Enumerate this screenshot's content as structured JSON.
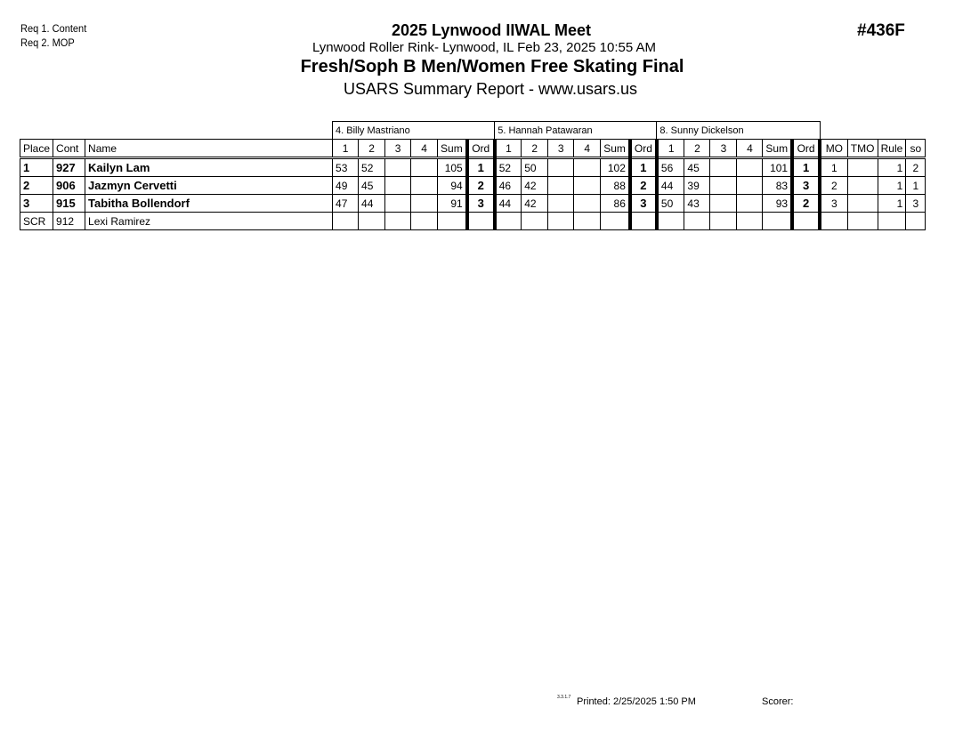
{
  "header": {
    "requirements": [
      "Req  1.  Content",
      "Req  2.  MOP"
    ],
    "meet_title": "2025 Lynwood IIWAL Meet",
    "location_line": "Lynwood Roller Rink- Lynwood, IL  Feb 23, 2025  10:55 AM",
    "event_title": "Fresh/Soph B Men/Women Free Skating Final",
    "report_title": "USARS Summary Report - www.usars.us",
    "event_number": "#436F"
  },
  "judges": [
    "4.  Billy Mastriano",
    "5.  Hannah  Patawaran",
    "8.  Sunny  Dickelson"
  ],
  "columns": {
    "place": "Place",
    "cont": "Cont",
    "name": "Name",
    "judge_cols": [
      "1",
      "2",
      "3",
      "4",
      "Sum",
      "Ord"
    ],
    "mo": "MO",
    "tmo": "TMO",
    "rule": "Rule",
    "so": "so"
  },
  "rows": [
    {
      "place": "1",
      "cont": "927",
      "name": "Kailyn Lam",
      "bold": true,
      "j": [
        [
          "53",
          "52",
          "",
          "",
          "105",
          "1"
        ],
        [
          "52",
          "50",
          "",
          "",
          "102",
          "1"
        ],
        [
          "56",
          "45",
          "",
          "",
          "101",
          "1"
        ]
      ],
      "mo": "1",
      "tmo": "",
      "rule": "1",
      "so": "2"
    },
    {
      "place": "2",
      "cont": "906",
      "name": "Jazmyn Cervetti",
      "bold": true,
      "j": [
        [
          "49",
          "45",
          "",
          "",
          "94",
          "2"
        ],
        [
          "46",
          "42",
          "",
          "",
          "88",
          "2"
        ],
        [
          "44",
          "39",
          "",
          "",
          "83",
          "3"
        ]
      ],
      "mo": "2",
      "tmo": "",
      "rule": "1",
      "so": "1"
    },
    {
      "place": "3",
      "cont": "915",
      "name": "Tabitha Bollendorf",
      "bold": true,
      "j": [
        [
          "47",
          "44",
          "",
          "",
          "91",
          "3"
        ],
        [
          "44",
          "42",
          "",
          "",
          "86",
          "3"
        ],
        [
          "50",
          "43",
          "",
          "",
          "93",
          "2"
        ]
      ],
      "mo": "3",
      "tmo": "",
      "rule": "1",
      "so": "3"
    },
    {
      "place": "SCR",
      "cont": "912",
      "name": "Lexi Ramirez",
      "bold": false,
      "j": [
        [
          "",
          "",
          "",
          "",
          "",
          ""
        ],
        [
          "",
          "",
          "",
          "",
          "",
          ""
        ],
        [
          "",
          "",
          "",
          "",
          "",
          ""
        ]
      ],
      "mo": "",
      "tmo": "",
      "rule": "",
      "so": ""
    }
  ],
  "footer": {
    "version": "3.3.1.7",
    "printed": "Printed:  2/25/2025  1:50 PM",
    "scorer": "Scorer:"
  }
}
